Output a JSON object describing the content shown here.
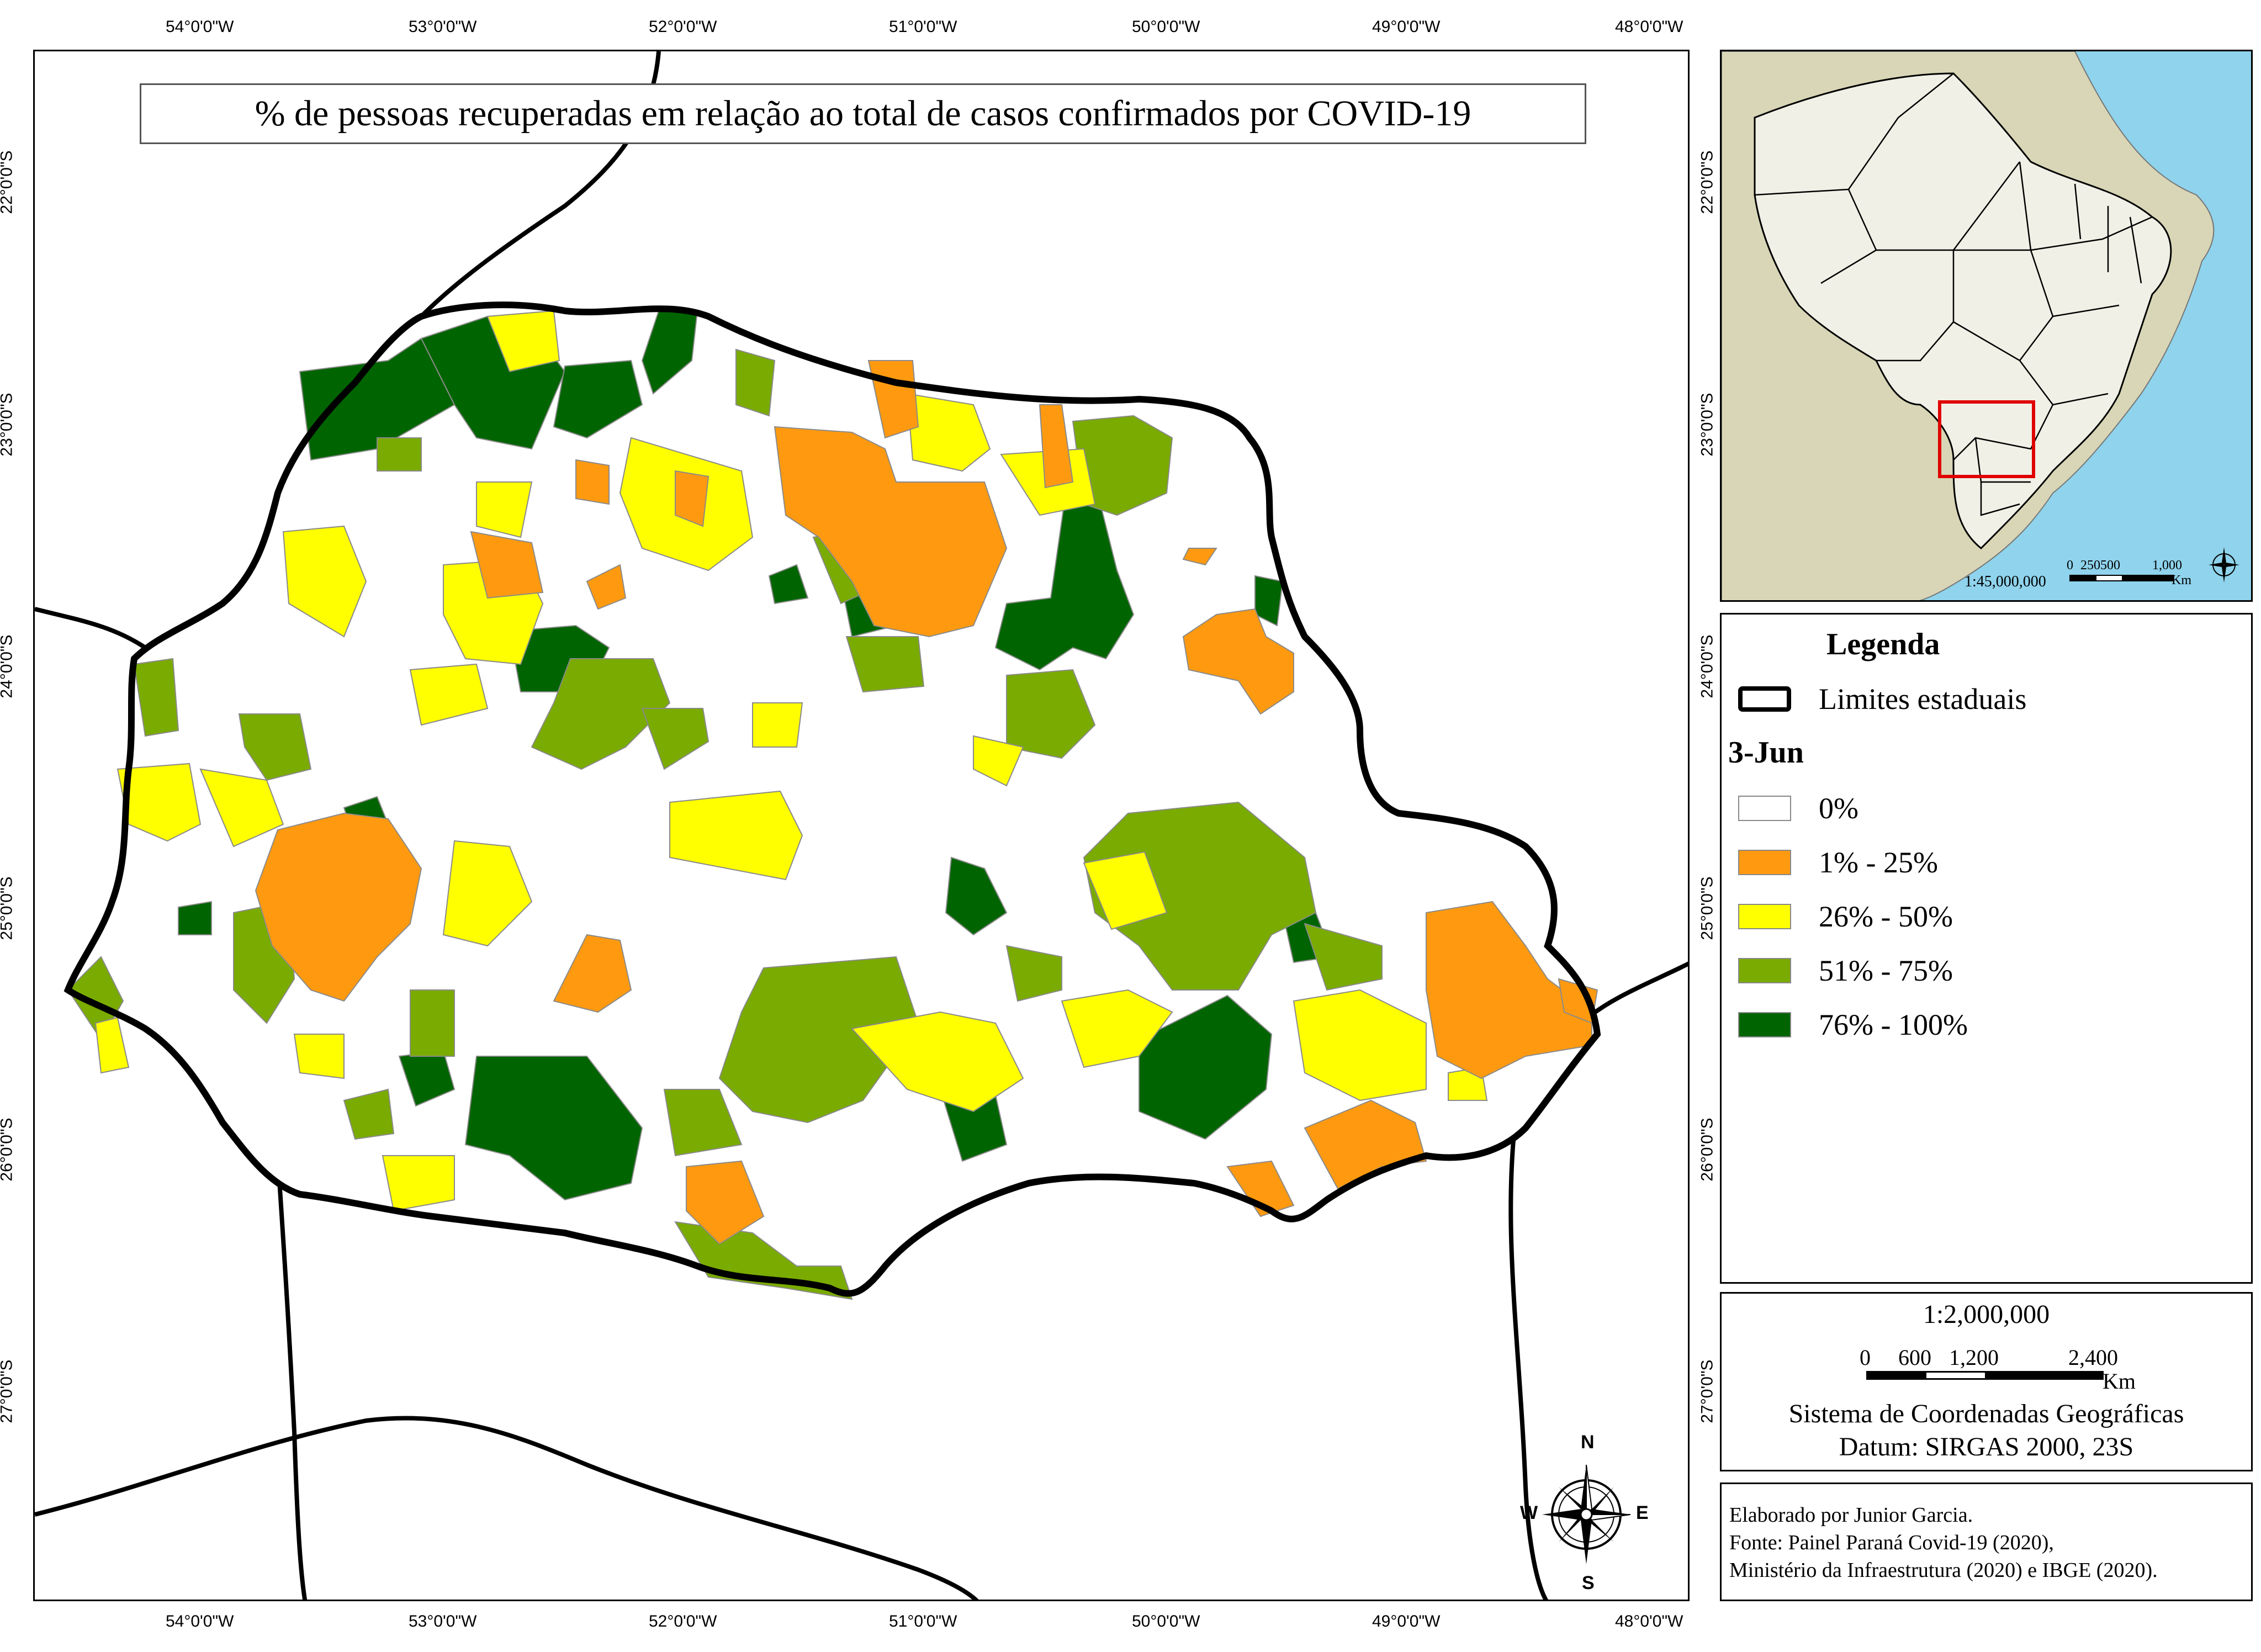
{
  "title": "% de pessoas recuperadas em relação ao total de casos confirmados por COVID-19",
  "axes": {
    "longitude_labels": [
      "54°0'0\"W",
      "53°0'0\"W",
      "52°0'0\"W",
      "51°0'0\"W",
      "50°0'0\"W",
      "49°0'0\"W",
      "48°0'0\"W"
    ],
    "latitude_labels": [
      "22°0'0\"S",
      "23°0'0\"S",
      "24°0'0\"S",
      "25°0'0\"S",
      "26°0'0\"S",
      "27°0'0\"S"
    ]
  },
  "inset": {
    "scale_text": "1:45,000,000",
    "scalebar_labels": [
      "0",
      "250500",
      "1,000"
    ],
    "scalebar_unit": "Km"
  },
  "legend": {
    "heading": "Legenda",
    "boundary_label": "Limites estaduais",
    "date_label": "3-Jun",
    "classes": [
      {
        "label": "0%",
        "color": "#ffffff"
      },
      {
        "label": "1% - 25%",
        "color": "#ff9a10"
      },
      {
        "label": "26% - 50%",
        "color": "#ffff00"
      },
      {
        "label": "51% - 75%",
        "color": "#7aab00"
      },
      {
        "label": "76% - 100%",
        "color": "#006400"
      }
    ]
  },
  "scale_box": {
    "ratio": "1:2,000,000",
    "bar_labels": [
      "0",
      "600",
      "1,200",
      "2,400"
    ],
    "unit": "Km",
    "crs": "Sistema de Coordenadas Geográficas",
    "datum": "Datum: SIRGAS 2000, 23S"
  },
  "credits": {
    "author": "Elaborado por Junior Garcia.",
    "source_1": "Fonte: Painel Paraná Covid-19 (2020),",
    "source_2": "Ministério da Infraestrutura (2020) e IBGE (2020)."
  },
  "compass": {
    "n": "N",
    "s": "S",
    "e": "E",
    "w": "W"
  },
  "colors": {
    "ocean": "#8fd3ec",
    "land": "#d8d6b6",
    "brazil": "#f1f0e6",
    "highlight": "#e00000"
  }
}
